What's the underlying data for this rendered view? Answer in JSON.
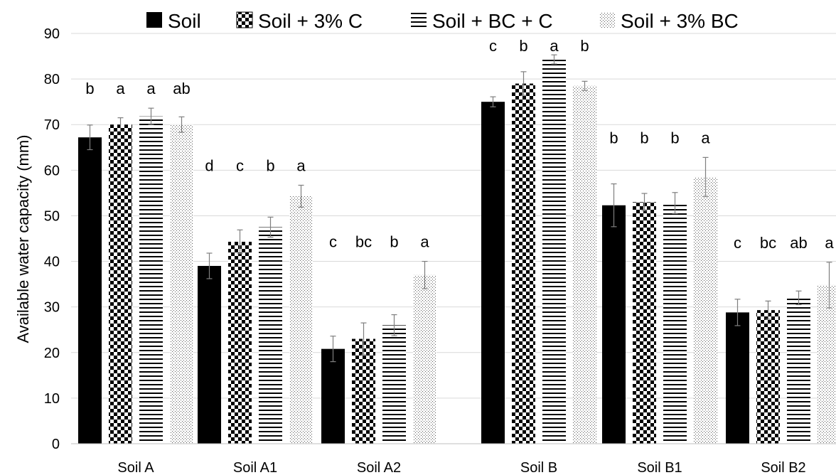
{
  "chart_data": {
    "type": "bar",
    "title": "",
    "xlabel": "",
    "ylabel": "Available water capacity (mm)",
    "ylim": [
      0,
      90
    ],
    "yticks": [
      0,
      10,
      20,
      30,
      40,
      50,
      60,
      70,
      80,
      90
    ],
    "grid": "horizontal",
    "legend_position": "top",
    "categories": [
      "Soil A",
      "Soil A1",
      "Soil A2",
      "Soil B",
      "Soil B1",
      "Soil B2"
    ],
    "series": [
      {
        "name": "Soil",
        "pattern": "solid",
        "values": [
          67.2,
          39.0,
          20.8,
          75.0,
          52.3,
          28.8
        ],
        "errors": [
          2.7,
          2.8,
          2.8,
          1.1,
          4.7,
          2.9
        ],
        "letters": [
          "b",
          "d",
          "c",
          "c",
          "b",
          "c"
        ]
      },
      {
        "name": "Soil + 3% C",
        "pattern": "checker",
        "values": [
          70.0,
          44.3,
          23.0,
          79.0,
          53.0,
          29.3
        ],
        "errors": [
          1.5,
          2.6,
          3.5,
          2.6,
          1.9,
          2.0
        ],
        "letters": [
          "a",
          "c",
          "bc",
          "b",
          "b",
          "bc"
        ]
      },
      {
        "name": "Soil + BC + C",
        "pattern": "horizontal-lines",
        "values": [
          71.8,
          47.5,
          26.0,
          84.3,
          52.8,
          32.0
        ],
        "errors": [
          1.8,
          2.2,
          2.3,
          1.0,
          2.3,
          1.5
        ],
        "letters": [
          "a",
          "b",
          "b",
          "a",
          "b",
          "ab"
        ]
      },
      {
        "name": "Soil + 3% BC",
        "pattern": "dots",
        "values": [
          70.0,
          54.3,
          37.0,
          78.5,
          58.5,
          34.8
        ],
        "errors": [
          1.7,
          2.4,
          3.0,
          1.0,
          4.3,
          5.0
        ],
        "letters": [
          "ab",
          "a",
          "a",
          "b",
          "a",
          "a"
        ]
      }
    ],
    "colors": {
      "bar": "#000000",
      "grid": "#d9d9d9",
      "background": "#ffffff"
    }
  }
}
